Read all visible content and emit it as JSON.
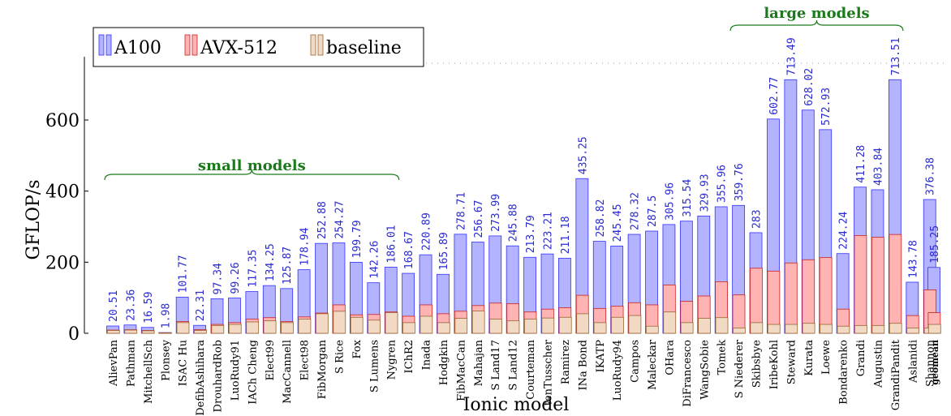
{
  "chart_data": {
    "type": "bar",
    "stacked": "overlay",
    "ylabel": "GFLOP/s",
    "xlabel": "Ionic model",
    "ylim": [
      0,
      780
    ],
    "yticks": [
      0,
      200,
      400,
      600
    ],
    "grid": false,
    "legend_placement": "top-left",
    "categories": [
      "AlievPan",
      "Pathman",
      "MitchellSch",
      "Plonsey",
      "ISAC Hu",
      "DefibAshihara",
      "DrouhardRob",
      "LuoRudy91",
      "IACh Cheng",
      "Elect99",
      "MacCannell",
      "Elect98",
      "FibMorgan",
      "S Rice",
      "Fox",
      "S Lumens",
      "Nygren",
      "IChR2",
      "Inada",
      "Hodgkin",
      "FibMacCan",
      "Mahajan",
      "S Land17",
      "S Land12",
      "Courteman",
      "tenTusscher",
      "Ramirez",
      "INa Bond",
      "IKATP",
      "LuoRudy94",
      "Campos",
      "Maleckar",
      "OHara",
      "DiFrancesco",
      "WangSobie",
      "Tomek",
      "S Niederer",
      "Skibsbye",
      "IribeKohl",
      "Steward",
      "Kurata",
      "Loewe",
      "Bondarenko",
      "Grandi",
      "Augustin",
      "GrandiPandit",
      "Aslanidi",
      "Shannon",
      "geomean"
    ],
    "series": [
      {
        "name": "A100",
        "color": "#b3b3ff",
        "stroke": "#3333ff",
        "values": [
          20.51,
          23.36,
          16.59,
          1.98,
          101.77,
          22.31,
          97.34,
          99.26,
          117.35,
          134.25,
          125.87,
          178.94,
          252.88,
          254.27,
          199.79,
          142.26,
          186.01,
          168.67,
          220.89,
          165.89,
          278.71,
          256.67,
          273.99,
          245.88,
          213.79,
          223.21,
          211.18,
          435.25,
          258.82,
          245.45,
          278.32,
          287.5,
          305.96,
          315.54,
          329.93,
          355.96,
          359.76,
          283,
          602.77,
          713.49,
          628.02,
          572.93,
          224.24,
          411.28,
          403.84,
          713.51,
          143.78,
          376.38,
          185.25
        ]
      },
      {
        "name": "AVX-512",
        "color": "#ffb3b3",
        "stroke": "#cc2222",
        "values": [
          9,
          10,
          8,
          1.5,
          33,
          10,
          25,
          30,
          40,
          44,
          33,
          46,
          57,
          80,
          52,
          53,
          60,
          48,
          80,
          55,
          62,
          78,
          85,
          83,
          60,
          68,
          72,
          107,
          70,
          76,
          86,
          80,
          136,
          90,
          105,
          145,
          108,
          183,
          175,
          198,
          207,
          213,
          68,
          275,
          270,
          278,
          50,
          122,
          58
        ]
      },
      {
        "name": "baseline",
        "color": "#f2d9c4",
        "stroke": "#996633",
        "values": [
          8,
          9,
          7,
          1.2,
          30,
          8,
          22,
          25,
          32,
          35,
          30,
          40,
          55,
          62,
          45,
          37,
          58,
          30,
          48,
          30,
          42,
          63,
          40,
          35,
          40,
          43,
          45,
          55,
          30,
          45,
          50,
          20,
          60,
          30,
          42,
          44,
          15,
          30,
          25,
          25,
          28,
          25,
          20,
          22,
          22,
          28,
          15,
          15,
          25
        ]
      }
    ],
    "value_labels": [
      "20.51",
      "23.36",
      "16.59",
      "1.98",
      "101.77",
      "22.31",
      "97.34",
      "99.26",
      "117.35",
      "134.25",
      "125.87",
      "178.94",
      "252.88",
      "254.27",
      "199.79",
      "142.26",
      "186.01",
      "168.67",
      "220.89",
      "165.89",
      "278.71",
      "256.67",
      "273.99",
      "245.88",
      "213.79",
      "223.21",
      "211.18",
      "435.25",
      "258.82",
      "245.45",
      "278.32",
      "287.5",
      "305.96",
      "315.54",
      "329.93",
      "355.96",
      "359.76",
      "283",
      "602.77",
      "713.49",
      "628.02",
      "572.93",
      "224.24",
      "411.28",
      "403.84",
      "713.51",
      "143.78",
      "376.38",
      "185.25"
    ],
    "annotations": [
      {
        "text": "small models",
        "from": "AlievPan",
        "to": "Nygren",
        "color": "#1a7a1a"
      },
      {
        "text": "large models",
        "from": "S Niederer",
        "to": "GrandiPandit",
        "color": "#1a7a1a"
      }
    ]
  }
}
